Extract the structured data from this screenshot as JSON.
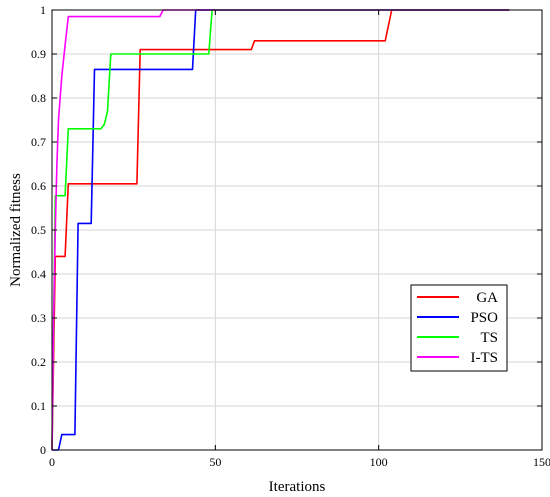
{
  "chart_data": {
    "type": "line",
    "title": "",
    "xlabel": "Iterations",
    "ylabel": "Normalized fitness",
    "xlim": [
      0,
      150
    ],
    "ylim": [
      0,
      1
    ],
    "xticks": [
      "0",
      "50",
      "100",
      "150"
    ],
    "yticks": [
      "0",
      "0.1",
      "0.2",
      "0.3",
      "0.4",
      "0.5",
      "0.6",
      "0.7",
      "0.8",
      "0.9",
      "1"
    ],
    "grid": true,
    "legend_position": "lower-right",
    "series": [
      {
        "name": "GA",
        "color": "#ff0000",
        "points": [
          [
            0,
            0
          ],
          [
            1,
            0.44
          ],
          [
            4,
            0.44
          ],
          [
            5,
            0.605
          ],
          [
            26,
            0.605
          ],
          [
            27,
            0.91
          ],
          [
            61,
            0.91
          ],
          [
            62,
            0.93
          ],
          [
            102,
            0.93
          ],
          [
            104,
            1
          ],
          [
            140,
            1
          ]
        ]
      },
      {
        "name": "PSO",
        "color": "#0000ff",
        "points": [
          [
            0,
            0
          ],
          [
            2,
            0
          ],
          [
            3,
            0.035
          ],
          [
            7,
            0.035
          ],
          [
            8,
            0.515
          ],
          [
            12,
            0.515
          ],
          [
            13,
            0.865
          ],
          [
            43,
            0.865
          ],
          [
            44,
            1
          ],
          [
            140,
            1
          ]
        ]
      },
      {
        "name": "TS",
        "color": "#00ff00",
        "points": [
          [
            0,
            0
          ],
          [
            1,
            0.578
          ],
          [
            4,
            0.578
          ],
          [
            5,
            0.73
          ],
          [
            15,
            0.73
          ],
          [
            16,
            0.74
          ],
          [
            17,
            0.77
          ],
          [
            18,
            0.9
          ],
          [
            48,
            0.9
          ],
          [
            49,
            1
          ],
          [
            140,
            1
          ]
        ]
      },
      {
        "name": "I-TS",
        "color": "#ff00ff",
        "points": [
          [
            0,
            0
          ],
          [
            0.5,
            0.3
          ],
          [
            1,
            0.5
          ],
          [
            1.5,
            0.65
          ],
          [
            2,
            0.75
          ],
          [
            3,
            0.85
          ],
          [
            4,
            0.92
          ],
          [
            5,
            0.985
          ],
          [
            33,
            0.985
          ],
          [
            34,
            1
          ],
          [
            140,
            1
          ]
        ]
      }
    ]
  }
}
